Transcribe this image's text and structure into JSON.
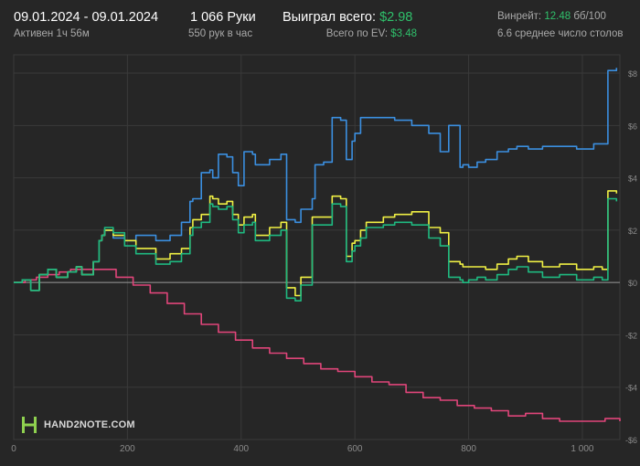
{
  "header": {
    "date_range": "09.01.2024 - 09.01.2024",
    "active_time": "Активен 1ч 56м",
    "hands": "1 066 Руки",
    "hands_per_hour": "550 рук в час",
    "won_label": "Выиграл всего:",
    "won_value": "$2.98",
    "ev_label": "Всего по EV:",
    "ev_value": "$3.48",
    "winrate_label": "Винрейт:",
    "winrate_value": "12.48",
    "winrate_unit": "бб/100",
    "avg_tables": "6.6 среднее число столов"
  },
  "logo": {
    "text": "HAND2NOTE.COM"
  },
  "colors": {
    "background": "#262626",
    "grid": "#3a3a3a",
    "zero_line": "#9a9a9a",
    "blue": "#3b8fe0",
    "yellow": "#f0f044",
    "green": "#1fb980",
    "pink": "#e0457a",
    "accent_green": "#2fc06b"
  },
  "chart_data": {
    "type": "line",
    "title": "",
    "xlabel": "",
    "ylabel": "",
    "xlim": [
      0,
      1066
    ],
    "ylim": [
      -6,
      8.7
    ],
    "x_ticks": [
      0,
      200,
      400,
      600,
      800,
      1000
    ],
    "x_tick_labels": [
      "0",
      "200",
      "400",
      "600",
      "800",
      "1 000"
    ],
    "y_ticks": [
      -6,
      -4,
      -2,
      0,
      2,
      4,
      6,
      8
    ],
    "y_tick_labels": [
      "-$6",
      "-$4",
      "-$2",
      "$0",
      "$2",
      "$4",
      "$6",
      "$8"
    ],
    "grid": true,
    "series": [
      {
        "color": "blue",
        "x": [
          0,
          15,
          30,
          45,
          60,
          75,
          95,
          110,
          120,
          140,
          150,
          155,
          160,
          175,
          195,
          215,
          250,
          275,
          295,
          310,
          315,
          330,
          345,
          350,
          360,
          375,
          385,
          395,
          405,
          420,
          425,
          450,
          470,
          480,
          495,
          505,
          525,
          530,
          545,
          560,
          575,
          585,
          595,
          600,
          610,
          620,
          650,
          670,
          700,
          730,
          750,
          765,
          785,
          790,
          800,
          815,
          830,
          850,
          870,
          885,
          905,
          930,
          960,
          990,
          1020,
          1035,
          1045,
          1060
        ],
        "y": [
          0.0,
          0.1,
          -0.3,
          0.3,
          0.5,
          0.2,
          0.4,
          0.6,
          0.3,
          0.8,
          1.6,
          1.8,
          2.0,
          1.7,
          1.6,
          1.8,
          1.6,
          1.8,
          2.3,
          3.1,
          3.2,
          4.2,
          4.3,
          4.0,
          4.9,
          4.8,
          4.2,
          3.7,
          5.0,
          4.9,
          4.5,
          4.7,
          4.9,
          2.4,
          2.3,
          2.8,
          3.2,
          4.5,
          4.6,
          6.3,
          6.2,
          4.7,
          5.4,
          5.7,
          6.3,
          6.3,
          6.3,
          6.2,
          6.0,
          5.7,
          5.0,
          6.0,
          4.4,
          4.5,
          4.4,
          4.6,
          4.7,
          5.0,
          5.1,
          5.2,
          5.1,
          5.2,
          5.2,
          5.1,
          5.3,
          5.3,
          8.1,
          8.2
        ]
      },
      {
        "color": "yellow",
        "x": [
          0,
          15,
          30,
          45,
          60,
          75,
          95,
          110,
          120,
          140,
          150,
          155,
          160,
          175,
          195,
          215,
          250,
          275,
          295,
          310,
          315,
          330,
          345,
          350,
          360,
          375,
          385,
          395,
          405,
          420,
          425,
          450,
          470,
          480,
          495,
          505,
          525,
          530,
          545,
          560,
          575,
          585,
          595,
          600,
          610,
          620,
          650,
          670,
          700,
          730,
          750,
          765,
          785,
          790,
          800,
          815,
          830,
          850,
          870,
          885,
          905,
          930,
          960,
          990,
          1020,
          1035,
          1045,
          1060
        ],
        "y": [
          0.0,
          0.1,
          -0.3,
          0.3,
          0.5,
          0.2,
          0.4,
          0.6,
          0.3,
          0.8,
          1.6,
          1.8,
          2.0,
          1.8,
          1.6,
          1.3,
          0.9,
          1.1,
          1.3,
          2.1,
          2.4,
          2.6,
          3.3,
          3.2,
          3.0,
          3.1,
          2.6,
          2.2,
          2.5,
          2.6,
          1.8,
          2.1,
          2.3,
          -0.2,
          -0.5,
          0.2,
          2.5,
          2.5,
          2.5,
          3.3,
          3.2,
          1.0,
          1.5,
          1.6,
          2.0,
          2.3,
          2.5,
          2.6,
          2.7,
          2.1,
          1.9,
          0.8,
          0.7,
          0.6,
          0.6,
          0.6,
          0.5,
          0.7,
          0.9,
          1.0,
          0.8,
          0.6,
          0.7,
          0.5,
          0.6,
          0.5,
          3.5,
          3.4
        ]
      },
      {
        "color": "green",
        "x": [
          0,
          15,
          30,
          45,
          60,
          75,
          95,
          110,
          120,
          140,
          150,
          155,
          160,
          175,
          195,
          215,
          250,
          275,
          295,
          310,
          315,
          330,
          345,
          350,
          360,
          375,
          385,
          395,
          405,
          420,
          425,
          450,
          470,
          480,
          495,
          505,
          525,
          530,
          545,
          560,
          575,
          585,
          595,
          600,
          610,
          620,
          650,
          670,
          700,
          730,
          750,
          765,
          785,
          790,
          800,
          815,
          830,
          850,
          870,
          885,
          905,
          930,
          960,
          990,
          1020,
          1035,
          1045,
          1060
        ],
        "y": [
          0.0,
          0.1,
          -0.3,
          0.3,
          0.5,
          0.2,
          0.4,
          0.6,
          0.3,
          0.8,
          1.6,
          1.8,
          2.1,
          1.9,
          1.4,
          1.1,
          0.7,
          0.8,
          1.1,
          1.8,
          2.1,
          2.3,
          3.0,
          2.9,
          2.8,
          2.9,
          2.4,
          1.9,
          2.2,
          2.3,
          1.6,
          1.8,
          2.0,
          -0.6,
          -0.7,
          -0.1,
          2.2,
          2.2,
          2.2,
          3.0,
          2.9,
          0.8,
          1.2,
          1.4,
          1.7,
          2.1,
          2.2,
          2.3,
          2.2,
          1.7,
          1.4,
          0.2,
          0.1,
          0.0,
          0.1,
          0.2,
          0.1,
          0.3,
          0.5,
          0.6,
          0.4,
          0.2,
          0.3,
          0.1,
          0.2,
          0.1,
          3.2,
          3.1
        ]
      },
      {
        "color": "pink",
        "x": [
          0,
          20,
          40,
          60,
          80,
          100,
          120,
          150,
          180,
          210,
          240,
          270,
          300,
          330,
          360,
          390,
          420,
          450,
          480,
          510,
          540,
          570,
          600,
          630,
          660,
          690,
          720,
          750,
          780,
          810,
          840,
          870,
          900,
          930,
          960,
          990,
          1020,
          1040,
          1066
        ],
        "y": [
          0.0,
          0.1,
          0.2,
          0.3,
          0.4,
          0.5,
          0.5,
          0.5,
          0.2,
          -0.1,
          -0.4,
          -0.8,
          -1.2,
          -1.6,
          -1.9,
          -2.2,
          -2.5,
          -2.7,
          -2.9,
          -3.1,
          -3.3,
          -3.4,
          -3.6,
          -3.8,
          -3.9,
          -4.2,
          -4.4,
          -4.5,
          -4.7,
          -4.8,
          -4.9,
          -5.1,
          -5.0,
          -5.2,
          -5.3,
          -5.3,
          -5.3,
          -5.2,
          -5.3
        ]
      }
    ]
  }
}
